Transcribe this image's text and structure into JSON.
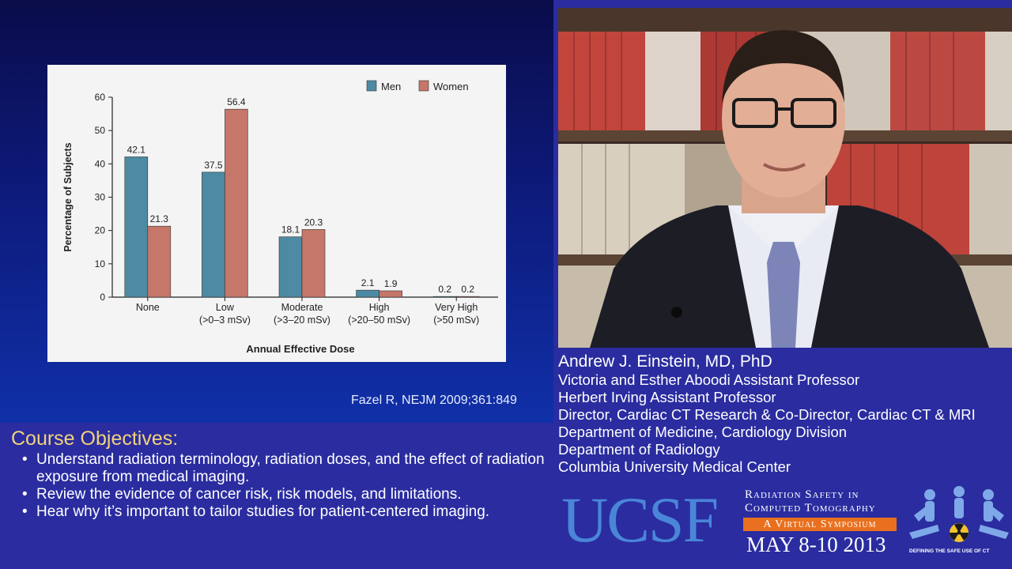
{
  "slide": {
    "citation": "Fazel R, NEJM 2009;361:849"
  },
  "chart_data": {
    "type": "bar",
    "title": "",
    "xlabel": "Annual Effective Dose",
    "ylabel": "Percentage of Subjects",
    "ylim": [
      0,
      60
    ],
    "yticks": [
      0,
      10,
      20,
      30,
      40,
      50,
      60
    ],
    "legend_position": "top-right",
    "categories": [
      [
        "None"
      ],
      [
        "Low",
        "(>0–3 mSv)"
      ],
      [
        "Moderate",
        "(>3–20 mSv)"
      ],
      [
        "High",
        "(>20–50 mSv)"
      ],
      [
        "Very High",
        "(>50 mSv)"
      ]
    ],
    "series": [
      {
        "name": "Men",
        "color": "#4d8aa3",
        "values": [
          42.1,
          37.5,
          18.1,
          2.1,
          0.2
        ],
        "labels": [
          "42.1",
          "37.5",
          "18.1",
          "2.1",
          "0.2"
        ]
      },
      {
        "name": "Women",
        "color": "#c5776a",
        "values": [
          21.3,
          56.4,
          20.3,
          1.9,
          0.2
        ],
        "labels": [
          "21.3",
          "56.4",
          "20.3",
          "1.9",
          "0.2"
        ]
      }
    ]
  },
  "objectives": {
    "title": "Course Objectives:",
    "items": [
      "Understand radiation terminology, radiation doses, and the effect of radiation exposure from medical imaging.",
      "Review the evidence of cancer risk, risk models, and limitations.",
      "Hear why it’s important to tailor studies for patient-centered imaging."
    ],
    "bullet": "•"
  },
  "speaker": {
    "name": "Andrew J. Einstein, MD, PhD",
    "titles": [
      "Victoria and Esther Aboodi Assistant Professor",
      "Herbert Irving Assistant Professor",
      "Director, Cardiac CT Research & Co-Director, Cardiac CT & MRI",
      "Department of Medicine, Cardiology Division",
      "Department of Radiology",
      "Columbia University Medical Center"
    ]
  },
  "banner": {
    "ucsf": "UCSF",
    "line1": "Radiation Safety in",
    "line2": "Computed Tomography",
    "virtual": "A Virtual Symposium",
    "dates": "MAY 8-10 2013",
    "tagline": "DEFINING THE SAFE USE OF CT",
    "logo_icon": "people-radiation-icon"
  }
}
